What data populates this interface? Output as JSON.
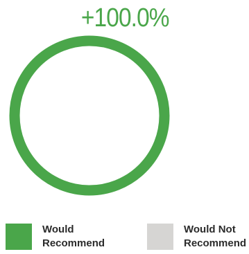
{
  "chart_data": {
    "type": "pie",
    "style": "donut",
    "headline": "+100.0%",
    "series": [
      {
        "name": "Would Recommend",
        "value": 100,
        "color": "#4aa64a"
      },
      {
        "name": "Would Not Recommend",
        "value": 0,
        "color": "#d6d5d3"
      }
    ],
    "legend": {
      "placement": "bottom",
      "items": [
        {
          "line1": "Would",
          "line2": "Recommend",
          "color": "#4aa64a"
        },
        {
          "line1": "Would Not",
          "line2": "Recommend",
          "color": "#d6d5d3"
        }
      ]
    }
  },
  "colors": {
    "headline": "#4aa64a"
  }
}
